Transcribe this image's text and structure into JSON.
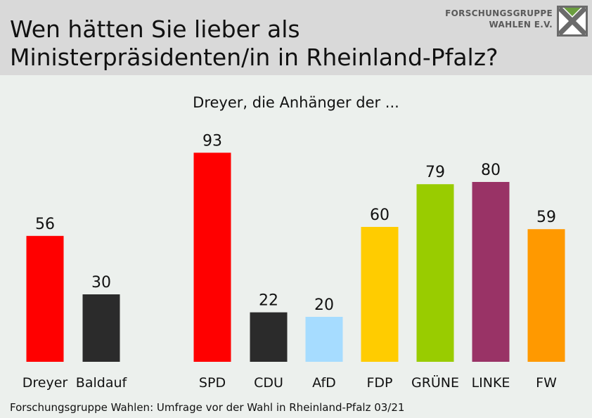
{
  "header": {
    "title_line1": "Wen hätten Sie lieber als",
    "title_line2": "Ministerpräsidenten/in in Rheinland-Pfalz?"
  },
  "logo": {
    "line1": "FORSCHUNGSGRUPPE",
    "line2": "WAHLEN E.V."
  },
  "footer": {
    "source": "Forschungsgruppe Wahlen: Umfrage vor der Wahl in Rheinland-Pfalz 03/21"
  },
  "chart_data": {
    "type": "bar",
    "title": "Wen hätten Sie lieber als Ministerpräsidenten/in in Rheinland-Pfalz?",
    "subtitle": "Dreyer, die Anhänger der ...",
    "ylim": [
      0,
      100
    ],
    "grid": false,
    "groups": [
      {
        "name": "",
        "categories": [
          "Dreyer",
          "Baldauf"
        ],
        "values": [
          56,
          30
        ],
        "colors": [
          "#ff0000",
          "#2b2b2b"
        ]
      },
      {
        "name": "Dreyer, die Anhänger der ...",
        "categories": [
          "SPD",
          "CDU",
          "AfD",
          "FDP",
          "GRÜNE",
          "LINKE",
          "FW"
        ],
        "values": [
          93,
          22,
          20,
          60,
          79,
          80,
          59
        ],
        "colors": [
          "#ff0000",
          "#2b2b2b",
          "#a6dcff",
          "#ffcc00",
          "#99cc00",
          "#993366",
          "#ff9900"
        ]
      }
    ]
  }
}
